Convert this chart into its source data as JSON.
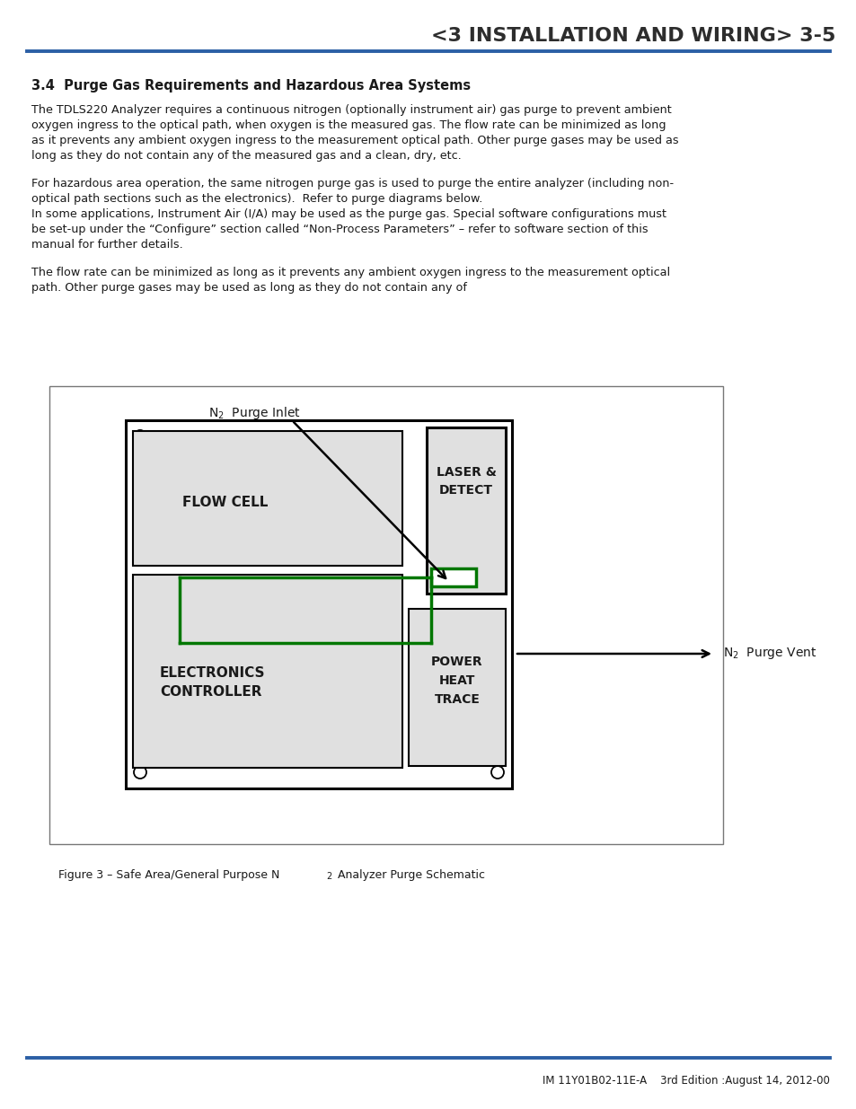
{
  "page_title": "<3 INSTALLATION AND WIRING> 3-5",
  "title_color": "#2d2d2d",
  "header_line_color": "#2b5fa5",
  "footer_line_color": "#2b5fa5",
  "section_heading": "3.4  Purge Gas Requirements and Hazardous Area Systems",
  "para1_lines": [
    "The TDLS220 Analyzer requires a continuous nitrogen (optionally instrument air) gas purge to prevent ambient",
    "oxygen ingress to the optical path, when oxygen is the measured gas. The flow rate can be minimized as long",
    "as it prevents any ambient oxygen ingress to the measurement optical path. Other purge gases may be used as",
    "long as they do not contain any of the measured gas and a clean, dry, etc."
  ],
  "para2_lines": [
    "For hazardous area operation, the same nitrogen purge gas is used to purge the entire analyzer (including non-",
    "optical path sections such as the electronics).  Refer to purge diagrams below.",
    "In some applications, Instrument Air (I/A) may be used as the purge gas. Special software configurations must",
    "be set-up under the “Configure” section called “Non-Process Parameters” – refer to software section of this",
    "manual for further details."
  ],
  "para3_lines": [
    "The flow rate can be minimized as long as it prevents any ambient oxygen ingress to the measurement optical",
    "path. Other purge gases may be used as long as they do not contain any of"
  ],
  "footer_text": "IM 11Y01B02-11E-A    3rd Edition :August 14, 2012-00",
  "bg_color": "#ffffff",
  "text_color": "#1a1a1a",
  "box_fill": "#e0e0e0",
  "green_color": "#007700",
  "blue_line_color": "#2b5fa5"
}
